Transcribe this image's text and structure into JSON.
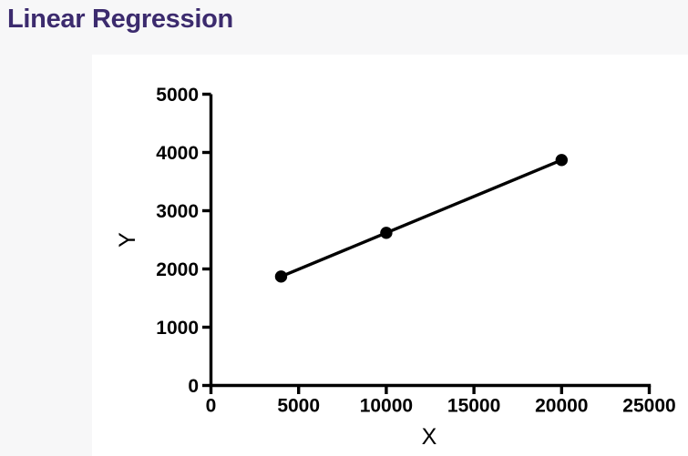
{
  "page": {
    "title": "Linear Regression",
    "title_color": "#3c2b6e",
    "background_color": "#f7f7f8",
    "panel_color": "#ffffff"
  },
  "chart_data": {
    "type": "scatter",
    "title": "Linear Regression",
    "xlabel": "X",
    "ylabel": "Y",
    "xlim": [
      0,
      25000
    ],
    "ylim": [
      0,
      5000
    ],
    "x_ticks": [
      0,
      5000,
      10000,
      15000,
      20000,
      25000
    ],
    "y_ticks": [
      0,
      1000,
      2000,
      3000,
      4000,
      5000
    ],
    "grid": false,
    "legend": false,
    "points": [
      [
        4000,
        1870
      ],
      [
        10000,
        2620
      ],
      [
        20000,
        3870
      ]
    ],
    "regression_line": {
      "endpoints": [
        [
          4000,
          1870
        ],
        [
          20000,
          3870
        ]
      ]
    },
    "marker_color": "#000000",
    "line_color": "#000000",
    "axis_color": "#000000"
  }
}
